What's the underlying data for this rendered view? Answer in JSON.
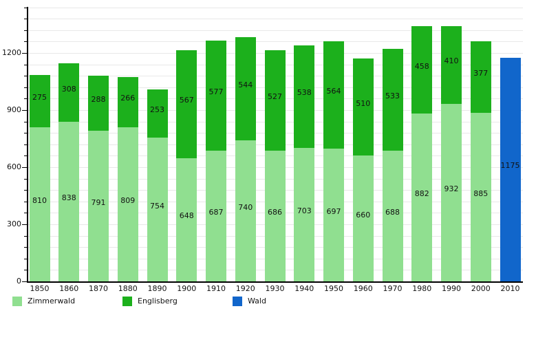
{
  "chart_data": {
    "type": "bar",
    "stacked": true,
    "title": "",
    "categories": [
      "1850",
      "1860",
      "1870",
      "1880",
      "1890",
      "1900",
      "1910",
      "1920",
      "1930",
      "1940",
      "1950",
      "1960",
      "1970",
      "1980",
      "1990",
      "2000",
      "2010"
    ],
    "series": [
      {
        "name": "Zimmerwald",
        "color": "#90df90",
        "values": [
          810,
          838,
          791,
          809,
          754,
          648,
          687,
          740,
          686,
          703,
          697,
          660,
          688,
          882,
          932,
          885,
          null
        ]
      },
      {
        "name": "Englisberg",
        "color": "#1cb01c",
        "values": [
          275,
          308,
          288,
          266,
          253,
          567,
          577,
          544,
          527,
          538,
          564,
          510,
          533,
          458,
          410,
          377,
          null
        ]
      },
      {
        "name": "Wald",
        "color": "#1166cb",
        "values": [
          null,
          null,
          null,
          null,
          null,
          null,
          null,
          null,
          null,
          null,
          null,
          null,
          null,
          null,
          null,
          null,
          1175
        ]
      }
    ],
    "y_axis": {
      "major_ticks": [
        0,
        300,
        600,
        900,
        1200
      ],
      "minor_tick_interval": 60,
      "max": 1440
    },
    "grid": true,
    "legend_position": "bottom"
  },
  "colors": {
    "axis": "#000000",
    "gridline": "#e8e8e8",
    "label": "#111111",
    "background": "#ffffff"
  }
}
